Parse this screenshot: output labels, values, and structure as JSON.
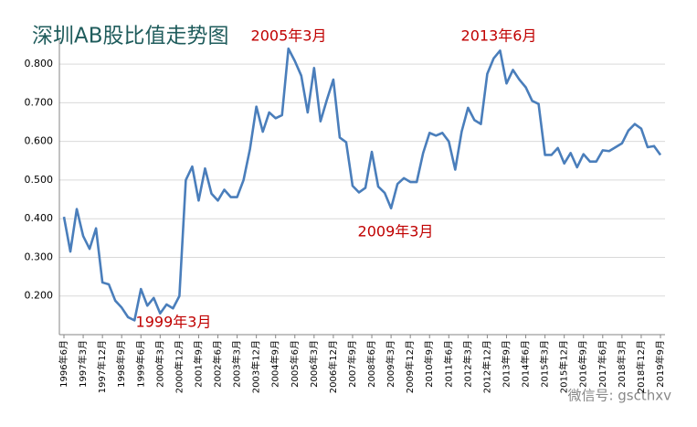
{
  "chart_data": {
    "type": "line",
    "title": "深圳AB股比值走势图",
    "categories": [
      "1996年6月",
      null,
      null,
      "1997年3月",
      null,
      null,
      "1997年12月",
      null,
      null,
      "1998年9月",
      null,
      null,
      "1999年6月",
      null,
      null,
      "2000年3月",
      null,
      null,
      "2000年12月",
      null,
      null,
      "2001年9月",
      null,
      null,
      "2002年6月",
      null,
      null,
      "2003年3月",
      null,
      null,
      "2003年12月",
      null,
      null,
      "2004年9月",
      null,
      null,
      "2005年6月",
      null,
      null,
      "2006年3月",
      null,
      null,
      "2006年12月",
      null,
      null,
      "2007年9月",
      null,
      null,
      "2008年6月",
      null,
      null,
      "2009年3月",
      null,
      null,
      "2009年12月",
      null,
      null,
      "2010年9月",
      null,
      null,
      "2011年6月",
      null,
      null,
      "2012年3月",
      null,
      null,
      "2012年12月",
      null,
      null,
      "2013年9月",
      null,
      null,
      "2014年6月",
      null,
      null,
      "2015年3月",
      null,
      null,
      "2015年12月",
      null,
      null,
      "2016年9月",
      null,
      null,
      "2017年6月",
      null,
      null,
      "2018年3月",
      null,
      null,
      "2018年12月",
      null,
      null,
      "2019年9月"
    ],
    "series": [
      {
        "color": "#4a7ebb",
        "values": [
          0.405,
          0.315,
          0.425,
          0.355,
          0.322,
          0.375,
          0.235,
          0.23,
          0.188,
          0.17,
          0.145,
          0.137,
          0.218,
          0.175,
          0.195,
          0.155,
          0.178,
          0.168,
          0.2,
          0.5,
          0.535,
          0.447,
          0.53,
          0.465,
          0.447,
          0.475,
          0.456,
          0.456,
          0.5,
          0.58,
          0.69,
          0.625,
          0.675,
          0.66,
          0.668,
          0.84,
          0.808,
          0.77,
          0.675,
          0.79,
          0.652,
          0.708,
          0.76,
          0.61,
          0.598,
          0.485,
          0.468,
          0.48,
          0.573,
          0.483,
          0.467,
          0.427,
          0.49,
          0.505,
          0.495,
          0.495,
          0.57,
          0.622,
          0.615,
          0.622,
          0.6,
          0.527,
          0.625,
          0.687,
          0.655,
          0.645,
          0.775,
          0.815,
          0.835,
          0.75,
          0.785,
          0.76,
          0.74,
          0.705,
          0.697,
          0.565,
          0.565,
          0.583,
          0.543,
          0.57,
          0.533,
          0.567,
          0.548,
          0.548,
          0.577,
          0.575,
          0.585,
          0.595,
          0.628,
          0.645,
          0.633,
          0.585,
          0.588,
          0.565
        ]
      }
    ],
    "ylim": [
      0.1,
      0.85
    ],
    "yticks": [
      {
        "value": 0.2,
        "label": "0.200"
      },
      {
        "value": 0.3,
        "label": "0.300"
      },
      {
        "value": 0.4,
        "label": "0.400"
      },
      {
        "value": 0.5,
        "label": "0.500"
      },
      {
        "value": 0.6,
        "label": "0.600"
      },
      {
        "value": 0.7,
        "label": "0.700"
      },
      {
        "value": 0.8,
        "label": "0.800"
      }
    ],
    "grid": true,
    "annotations": [
      "1999年3月",
      "2005年3月",
      "2009年3月",
      "2013年6月"
    ],
    "watermark": "微信号: gscthxv"
  }
}
